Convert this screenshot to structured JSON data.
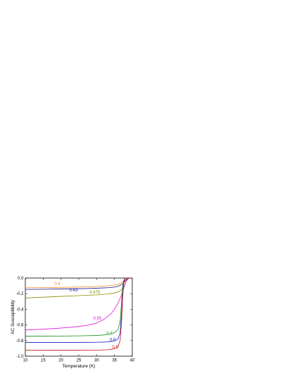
{
  "chart_data": {
    "type": "line",
    "title": "",
    "xlabel": "Temperature (K)",
    "ylabel": "AC Susceptibility",
    "xlim": [
      10,
      40
    ],
    "ylim": [
      -1.0,
      0.0
    ],
    "xticks": [
      "10",
      "15",
      "20",
      "25",
      "30",
      "35",
      "40"
    ],
    "yticks": [
      "0.0",
      "-0.2",
      "-0.4",
      "-0.6",
      "-0.8",
      "-1.0"
    ],
    "grid": false,
    "legend": "none",
    "series": [
      {
        "name": "0.4",
        "color": "#f08a1c",
        "label_at": [
          19,
          -0.07
        ],
        "points": [
          [
            10,
            -0.125
          ],
          [
            15,
            -0.123
          ],
          [
            20,
            -0.12
          ],
          [
            25,
            -0.115
          ],
          [
            30,
            -0.108
          ],
          [
            33,
            -0.1
          ],
          [
            35,
            -0.09
          ],
          [
            36,
            -0.08
          ],
          [
            37,
            -0.06
          ],
          [
            37.8,
            -0.03
          ],
          [
            38.3,
            -0.01
          ],
          [
            39,
            0.0
          ],
          [
            40,
            0.0
          ]
        ]
      },
      {
        "name": "0.43",
        "color": "#10108a",
        "label_at": [
          23.5,
          -0.155
        ],
        "points": [
          [
            10,
            -0.145
          ],
          [
            15,
            -0.143
          ],
          [
            20,
            -0.14
          ],
          [
            25,
            -0.137
          ],
          [
            30,
            -0.13
          ],
          [
            33,
            -0.124
          ],
          [
            35,
            -0.116
          ],
          [
            36,
            -0.106
          ],
          [
            37,
            -0.085
          ],
          [
            37.8,
            -0.05
          ],
          [
            38.4,
            -0.015
          ],
          [
            39,
            0.0
          ],
          [
            40,
            0.0
          ]
        ]
      },
      {
        "name": "0.475",
        "color": "#8c8c00",
        "label_at": [
          29.5,
          -0.18
        ],
        "points": [
          [
            10,
            -0.255
          ],
          [
            15,
            -0.245
          ],
          [
            20,
            -0.235
          ],
          [
            25,
            -0.225
          ],
          [
            30,
            -0.215
          ],
          [
            33,
            -0.205
          ],
          [
            35,
            -0.192
          ],
          [
            36,
            -0.178
          ],
          [
            37,
            -0.15
          ],
          [
            37.8,
            -0.09
          ],
          [
            38.4,
            -0.03
          ],
          [
            39,
            0.0
          ],
          [
            40,
            0.0
          ]
        ]
      },
      {
        "name": "0.55",
        "color": "#e010e0",
        "label_at": [
          30.2,
          -0.515
        ],
        "points": [
          [
            10,
            -0.665
          ],
          [
            15,
            -0.655
          ],
          [
            20,
            -0.64
          ],
          [
            25,
            -0.62
          ],
          [
            28,
            -0.6
          ],
          [
            30,
            -0.575
          ],
          [
            32,
            -0.53
          ],
          [
            34,
            -0.46
          ],
          [
            35,
            -0.4
          ],
          [
            36,
            -0.32
          ],
          [
            37,
            -0.22
          ],
          [
            37.6,
            -0.13
          ],
          [
            38.2,
            -0.05
          ],
          [
            38.8,
            -0.01
          ],
          [
            39.3,
            0.0
          ],
          [
            40,
            0.0
          ]
        ]
      },
      {
        "name": "0.7",
        "color": "#158a15",
        "label_at": [
          33.6,
          -0.705
        ],
        "points": [
          [
            10,
            -0.745
          ],
          [
            15,
            -0.744
          ],
          [
            20,
            -0.742
          ],
          [
            25,
            -0.74
          ],
          [
            30,
            -0.735
          ],
          [
            33,
            -0.725
          ],
          [
            35,
            -0.7
          ],
          [
            36,
            -0.66
          ],
          [
            36.6,
            -0.55
          ],
          [
            37,
            -0.3
          ],
          [
            37.3,
            -0.12
          ],
          [
            37.6,
            -0.03
          ],
          [
            38,
            0.0
          ],
          [
            40,
            0.0
          ]
        ]
      },
      {
        "name": "0.8",
        "color": "#1818c8",
        "label_at": [
          34.5,
          -0.79
        ],
        "points": [
          [
            10,
            -0.825
          ],
          [
            15,
            -0.825
          ],
          [
            20,
            -0.825
          ],
          [
            25,
            -0.824
          ],
          [
            30,
            -0.822
          ],
          [
            33,
            -0.818
          ],
          [
            35,
            -0.805
          ],
          [
            36,
            -0.78
          ],
          [
            36.6,
            -0.7
          ],
          [
            37,
            -0.45
          ],
          [
            37.3,
            -0.2
          ],
          [
            37.6,
            -0.05
          ],
          [
            38,
            0.0
          ],
          [
            40,
            0.0
          ]
        ]
      },
      {
        "name": "0.9",
        "color": "#c81010",
        "label_at": [
          35.2,
          -0.885
        ],
        "points": [
          [
            10,
            -0.925
          ],
          [
            15,
            -0.925
          ],
          [
            20,
            -0.924
          ],
          [
            25,
            -0.923
          ],
          [
            30,
            -0.922
          ],
          [
            33,
            -0.918
          ],
          [
            35,
            -0.905
          ],
          [
            36,
            -0.88
          ],
          [
            36.6,
            -0.8
          ],
          [
            37,
            -0.55
          ],
          [
            37.3,
            -0.25
          ],
          [
            37.6,
            -0.06
          ],
          [
            38,
            0.0
          ],
          [
            40,
            0.0
          ]
        ]
      }
    ]
  }
}
